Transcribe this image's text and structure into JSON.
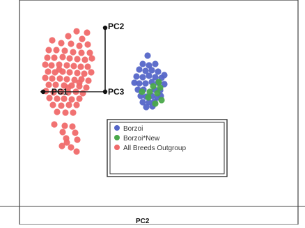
{
  "chart_data": {
    "type": "scatter",
    "title": "",
    "xlabel": "PC2",
    "ylabel": "",
    "axis_labels": {
      "pc1": "PC1",
      "pc2": "PC2",
      "pc3": "PC3"
    },
    "grid": false,
    "legend_position": "lower-center",
    "series": [
      {
        "name": "Borzoi",
        "color": "#5566c8",
        "points": [
          [
            212,
            80
          ],
          [
            205,
            92
          ],
          [
            214,
            94
          ],
          [
            223,
            92
          ],
          [
            200,
            100
          ],
          [
            209,
            102
          ],
          [
            218,
            101
          ],
          [
            227,
            103
          ],
          [
            196,
            110
          ],
          [
            205,
            111
          ],
          [
            214,
            109
          ],
          [
            223,
            111
          ],
          [
            232,
            112
          ],
          [
            200,
            120
          ],
          [
            209,
            120
          ],
          [
            218,
            118
          ],
          [
            227,
            119
          ],
          [
            236,
            121
          ],
          [
            198,
            129
          ],
          [
            206,
            129
          ],
          [
            222,
            129
          ],
          [
            230,
            130
          ],
          [
            202,
            138
          ],
          [
            210,
            139
          ],
          [
            218,
            138
          ],
          [
            226,
            140
          ],
          [
            205,
            147
          ],
          [
            214,
            147
          ],
          [
            222,
            146
          ],
          [
            210,
            154
          ],
          [
            219,
            153
          ],
          [
            236,
            108
          ],
          [
            193,
            119
          ],
          [
            231,
            138
          ]
        ]
      },
      {
        "name": "Borzoi*New",
        "color": "#4aa84a",
        "points": [
          [
            228,
            118
          ],
          [
            230,
            126
          ],
          [
            220,
            124
          ],
          [
            215,
            132
          ],
          [
            226,
            134
          ],
          [
            232,
            144
          ],
          [
            223,
            149
          ],
          [
            213,
            140
          ],
          [
            204,
            132
          ]
        ]
      },
      {
        "name": "All Breeds Outgroup",
        "color": "#f06a6a",
        "points": [
          [
            110,
            45
          ],
          [
            125,
            47
          ],
          [
            98,
            52
          ],
          [
            118,
            56
          ],
          [
            75,
            58
          ],
          [
            88,
            62
          ],
          [
            102,
            63
          ],
          [
            114,
            66
          ],
          [
            126,
            64
          ],
          [
            70,
            72
          ],
          [
            81,
            72
          ],
          [
            93,
            73
          ],
          [
            105,
            75
          ],
          [
            117,
            76
          ],
          [
            129,
            76
          ],
          [
            68,
            83
          ],
          [
            78,
            83
          ],
          [
            90,
            82
          ],
          [
            100,
            84
          ],
          [
            111,
            85
          ],
          [
            122,
            86
          ],
          [
            132,
            84
          ],
          [
            65,
            93
          ],
          [
            74,
            94
          ],
          [
            85,
            93
          ],
          [
            96,
            94
          ],
          [
            106,
            95
          ],
          [
            116,
            96
          ],
          [
            126,
            96
          ],
          [
            69,
            103
          ],
          [
            79,
            104
          ],
          [
            90,
            103
          ],
          [
            100,
            104
          ],
          [
            111,
            105
          ],
          [
            121,
            106
          ],
          [
            131,
            104
          ],
          [
            65,
            112
          ],
          [
            75,
            113
          ],
          [
            86,
            113
          ],
          [
            96,
            114
          ],
          [
            107,
            115
          ],
          [
            117,
            114
          ],
          [
            127,
            116
          ],
          [
            70,
            122
          ],
          [
            80,
            122
          ],
          [
            92,
            123
          ],
          [
            103,
            123
          ],
          [
            114,
            124
          ],
          [
            124,
            126
          ],
          [
            66,
            131
          ],
          [
            77,
            133
          ],
          [
            88,
            132
          ],
          [
            98,
            133
          ],
          [
            109,
            132
          ],
          [
            119,
            134
          ],
          [
            71,
            141
          ],
          [
            82,
            142
          ],
          [
            92,
            142
          ],
          [
            103,
            143
          ],
          [
            114,
            142
          ],
          [
            76,
            151
          ],
          [
            88,
            152
          ],
          [
            99,
            151
          ],
          [
            110,
            151
          ],
          [
            82,
            161
          ],
          [
            94,
            162
          ],
          [
            105,
            162
          ],
          [
            78,
            179
          ],
          [
            93,
            181
          ],
          [
            104,
            182
          ],
          [
            90,
            190
          ],
          [
            108,
            191
          ],
          [
            95,
            199
          ],
          [
            111,
            201
          ],
          [
            89,
            210
          ],
          [
            102,
            212
          ],
          [
            110,
            218
          ],
          [
            96,
            205
          ],
          [
            85,
            100
          ],
          [
            114,
            119
          ],
          [
            98,
            126
          ]
        ]
      }
    ]
  }
}
